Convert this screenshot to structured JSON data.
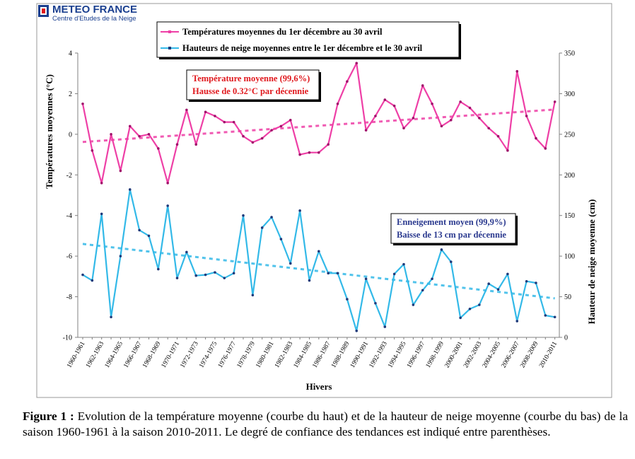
{
  "logo": {
    "title": "METEO FRANCE",
    "subtitle": "Centre d'Etudes de la Neige"
  },
  "legend": [
    {
      "label": "Températures moyennes du 1er décembre au 30 avril",
      "color": "#ee3fa6"
    },
    {
      "label": "Hauteurs de neige moyennes entre le 1er décembre et le 30 avril",
      "color": "#33b9e8"
    }
  ],
  "annotations": {
    "temperature": {
      "line1": "Température moyenne (99,6%)",
      "line2": "Hausse de 0.32°C par décennie",
      "color": "#e0191e"
    },
    "snow": {
      "line1": "Enneigement moyen (99,9%)",
      "line2": "Baisse de 13 cm par décennie",
      "color": "#2b3a8f"
    }
  },
  "caption": {
    "label": "Figure 1 :",
    "text": " Evolution de la température moyenne (courbe du haut) et de la hauteur de neige moyenne (courbe du bas) de la saison 1960-1961 à la saison 2010-2011. Le degré de confiance des tendances est indiqué entre parenthèses."
  },
  "chart_data": {
    "type": "line",
    "xlabel": "Hivers",
    "ylabel_left": "Températures moyennes (°C)",
    "ylabel_right": "Hauteur de neige moyenne (cm)",
    "ylim_left": [
      -10,
      4
    ],
    "yticks_left": [
      -10,
      -8,
      -6,
      -4,
      -2,
      0,
      2,
      4
    ],
    "ylim_right": [
      0,
      350
    ],
    "yticks_right": [
      0,
      50,
      100,
      150,
      200,
      250,
      300,
      350
    ],
    "x_tick_labels": [
      "1960-1961",
      "1962-1963",
      "1964-1965",
      "1966-1967",
      "1968-1969",
      "1970-1971",
      "1972-1973",
      "1974-1975",
      "1976-1977",
      "1978-1979",
      "1980-1981",
      "1982-1983",
      "1984-1985",
      "1986-1987",
      "1988-1989",
      "1990-1991",
      "1992-1993",
      "1994-1995",
      "1996-1997",
      "1998-1999",
      "2000-2001",
      "2002-2003",
      "2004-2005",
      "2006-2007",
      "2008-2009",
      "2010-2011"
    ],
    "x_count": 51,
    "series": [
      {
        "name": "Températures moyennes du 1er décembre au 30 avril",
        "axis": "left",
        "color": "#ee3fa6",
        "values": [
          1.5,
          -0.8,
          -2.4,
          0.0,
          -1.8,
          0.4,
          -0.1,
          0.0,
          -0.7,
          -2.4,
          -0.5,
          1.2,
          -0.5,
          1.1,
          0.9,
          0.6,
          0.6,
          -0.1,
          -0.4,
          -0.2,
          0.2,
          0.4,
          0.7,
          -1.0,
          -0.9,
          -0.9,
          -0.5,
          1.5,
          2.6,
          3.5,
          0.2,
          0.9,
          1.7,
          1.4,
          0.3,
          0.8,
          2.4,
          1.5,
          0.4,
          0.7,
          1.6,
          1.3,
          0.8,
          0.3,
          -0.1,
          -0.8,
          3.1,
          0.9,
          -0.2,
          -0.7,
          1.6
        ],
        "trend": [
          -0.38,
          1.22
        ]
      },
      {
        "name": "Hauteurs de neige moyennes entre le 1er décembre et le 30 avril",
        "axis": "right",
        "color": "#33b9e8",
        "values": [
          77,
          70,
          152,
          25,
          100,
          182,
          132,
          125,
          84,
          162,
          73,
          105,
          76,
          77,
          80,
          73,
          79,
          150,
          52,
          135,
          148,
          121,
          91,
          156,
          70,
          106,
          79,
          79,
          47,
          8,
          72,
          42,
          13,
          78,
          90,
          40,
          58,
          72,
          108,
          93,
          24,
          35,
          40,
          66,
          59,
          78,
          20,
          69,
          67,
          27,
          25
        ],
        "trend": [
          115,
          48
        ]
      }
    ]
  }
}
